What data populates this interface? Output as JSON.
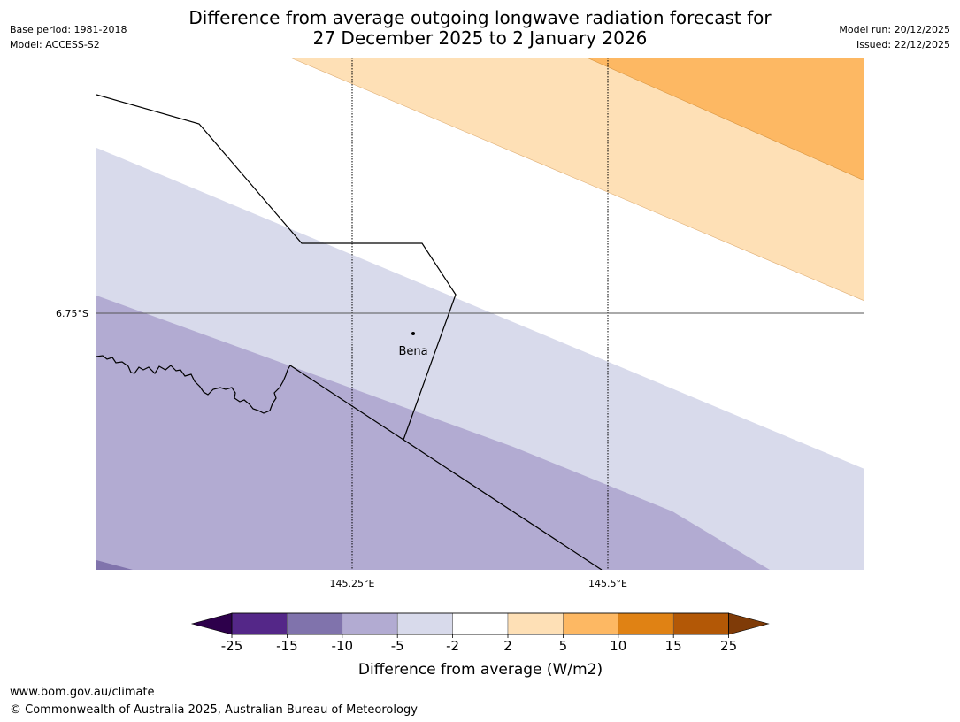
{
  "header": {
    "title_line1": "Difference from average outgoing longwave radiation forecast for",
    "title_line2": "27 December 2025 to 2 January 2026",
    "base_period": "Base period: 1981-2018",
    "model": "Model: ACCESS-S2",
    "model_run": "Model run: 20/12/2025",
    "issued": "Issued: 22/12/2025"
  },
  "map": {
    "latitude_labels": [
      "6.75°S"
    ],
    "longitude_labels": [
      "145.25°E",
      "145.5°E"
    ],
    "place": {
      "name": "Bena"
    }
  },
  "legend": {
    "title": "Difference from average (W/m2)",
    "ticks": [
      "-25",
      "-15",
      "-10",
      "-5",
      "-2",
      "2",
      "5",
      "10",
      "15",
      "25"
    ],
    "colors": [
      "#2d004b",
      "#542788",
      "#8073ac",
      "#b2abd2",
      "#d8daeb",
      "#ffffff",
      "#fee0b6",
      "#fdb863",
      "#e08214",
      "#b35806",
      "#7f3b08"
    ]
  },
  "footer": {
    "url": "www.bom.gov.au/climate",
    "copyright": "© Commonwealth of Australia 2025, Australian Bureau of Meteorology"
  }
}
